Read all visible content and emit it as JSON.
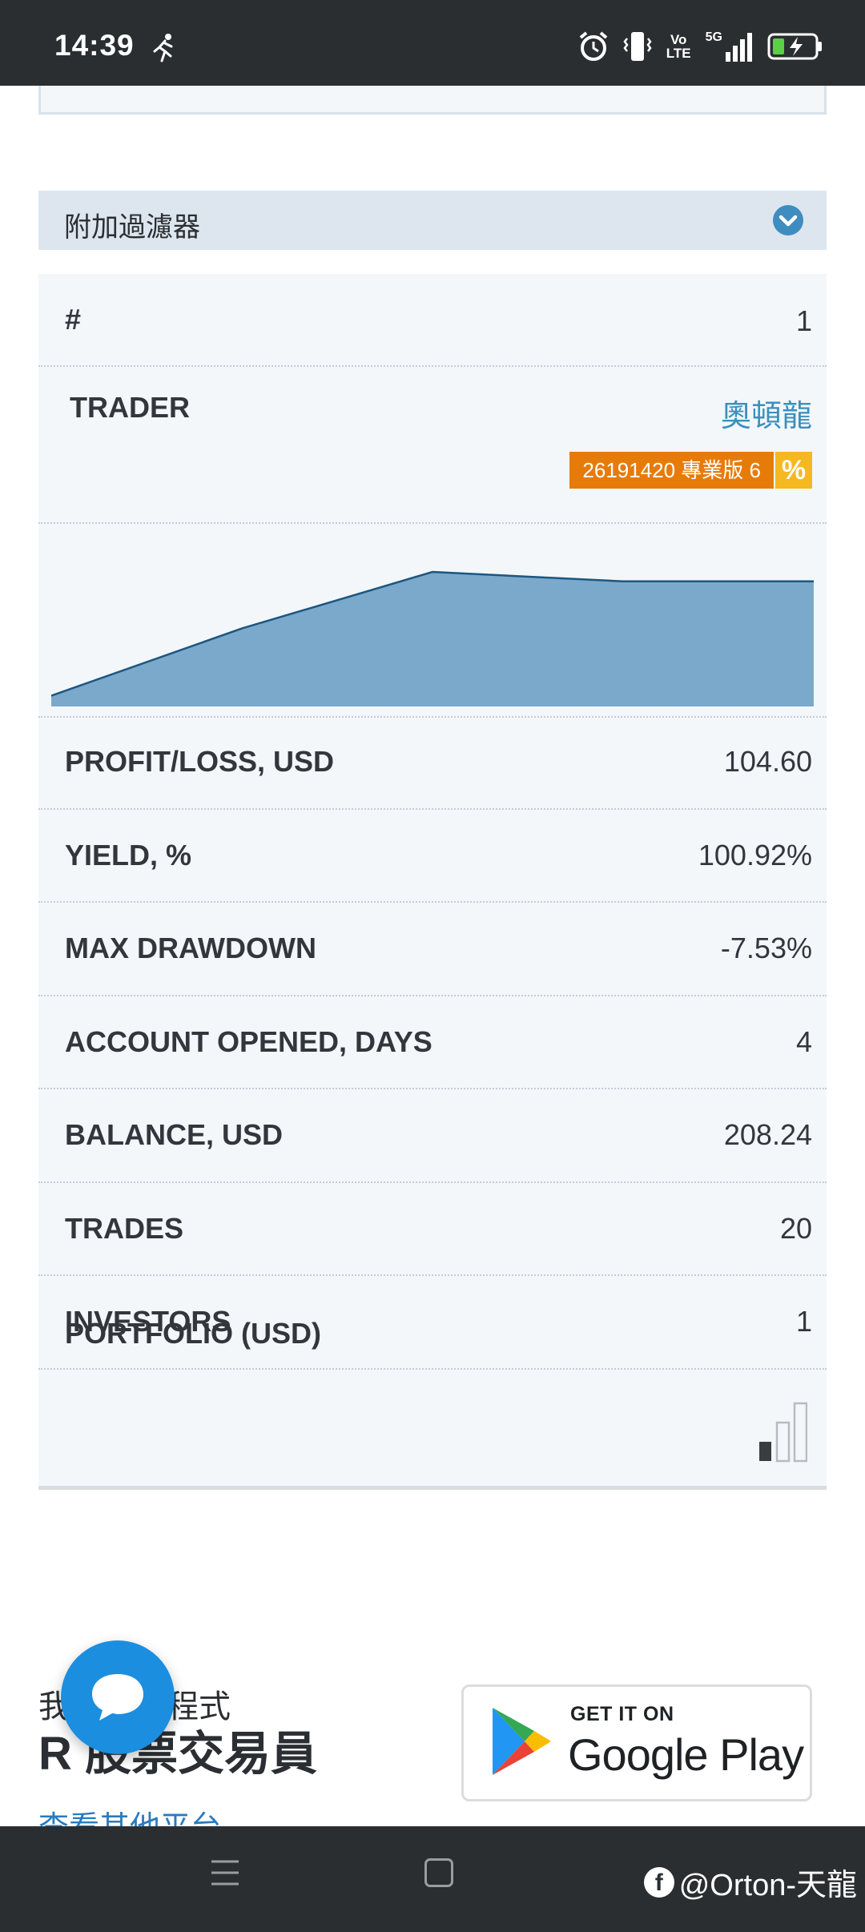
{
  "status_bar": {
    "time": "14:39",
    "volte_top": "Vo",
    "volte_bottom": "LTE",
    "network": "5G",
    "icons": [
      "running-icon",
      "alarm-icon",
      "vibrate-icon",
      "volte-icon",
      "signal-icon",
      "battery-charging-icon"
    ]
  },
  "filter": {
    "label": "附加過濾器",
    "icon": "chevron-down-icon"
  },
  "table": {
    "index_key": "#",
    "index_value": "1",
    "trader_key": "TRADER",
    "trader_name": "奧頓龍",
    "account_badge": "26191420 專業版 6",
    "percent_badge": "%",
    "rows": [
      {
        "key": "PROFIT/LOSS, USD",
        "value": "104.60"
      },
      {
        "key": "YIELD, %",
        "value": "100.92%"
      },
      {
        "key": "MAX DRAWDOWN",
        "value": "-7.53%"
      },
      {
        "key": "ACCOUNT OPENED, DAYS",
        "value": "4"
      },
      {
        "key": "BALANCE, USD",
        "value": "208.24"
      },
      {
        "key": "TRADES",
        "value": "20"
      },
      {
        "key": "INVESTORS",
        "value": "1"
      }
    ],
    "portfolio_key": "PORTFOLIO (USD)",
    "portfolio_level": 1,
    "portfolio_levels_total": 3
  },
  "chart_data": {
    "type": "area",
    "title": "",
    "xlabel": "",
    "ylabel": "",
    "grid": false,
    "points": [
      0.08,
      0.58,
      1.0,
      0.93,
      0.93
    ],
    "colors": {
      "fill": "#7aa9cc",
      "line": "#1d5680"
    }
  },
  "promo": {
    "small_text": "我易應用程式",
    "big_text": "R 股票交易員",
    "link_text": "查看其他平台",
    "gplay_small": "GET IT ON",
    "gplay_big": "Google Play"
  },
  "watermark": {
    "text": "@Orton-天龍"
  },
  "colors": {
    "accent_blue": "#3b8fbe",
    "badge_orange": "#e77b0a",
    "badge_yellow": "#f5b820",
    "chat_blue": "#1b8ee0"
  }
}
